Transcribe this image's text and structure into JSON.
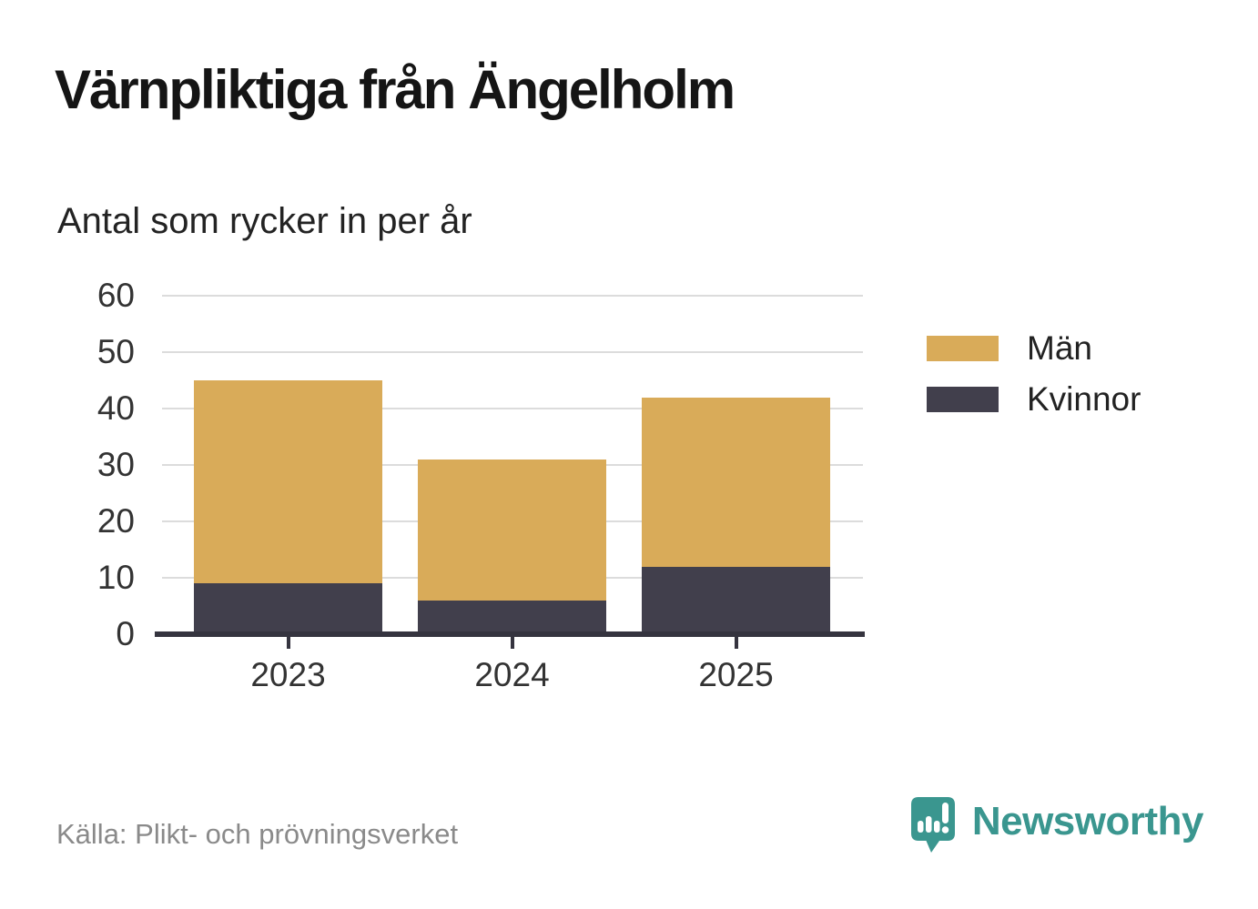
{
  "header": {
    "title": "Värnpliktiga från Ängelholm",
    "subtitle": "Antal som rycker in per år"
  },
  "footer": {
    "source": "Källa: Plikt- och prövningsverket",
    "brand_name": "Newsworthy",
    "brand_icon": "speech-bubble-bar-chart-icon"
  },
  "colors": {
    "men": "#d9ab59",
    "women": "#413f4c",
    "brand_teal": "#3a968f",
    "gridline": "#dcdcdc",
    "axis": "#35343f",
    "tick_label": "#333333",
    "source_text": "#8a8a8a"
  },
  "legend": {
    "position": "right",
    "items": [
      {
        "label": "Män",
        "color": "#d9ab59"
      },
      {
        "label": "Kvinnor",
        "color": "#413f4c"
      }
    ]
  },
  "chart_data": {
    "type": "bar",
    "stacked": true,
    "title": "Värnpliktiga från Ängelholm",
    "subtitle": "Antal som rycker in per år",
    "categories": [
      "2023",
      "2024",
      "2025"
    ],
    "series": [
      {
        "name": "Kvinnor",
        "color": "#413f4c",
        "values": [
          9,
          6,
          12
        ]
      },
      {
        "name": "Män",
        "color": "#d9ab59",
        "values": [
          36,
          25,
          30
        ]
      }
    ],
    "stack_totals": [
      45,
      31,
      42
    ],
    "xlabel": "",
    "ylabel": "",
    "ylim": [
      0,
      60
    ],
    "yticks": [
      0,
      10,
      20,
      30,
      40,
      50,
      60
    ],
    "grid": "horizontal",
    "legend_position": "right"
  }
}
